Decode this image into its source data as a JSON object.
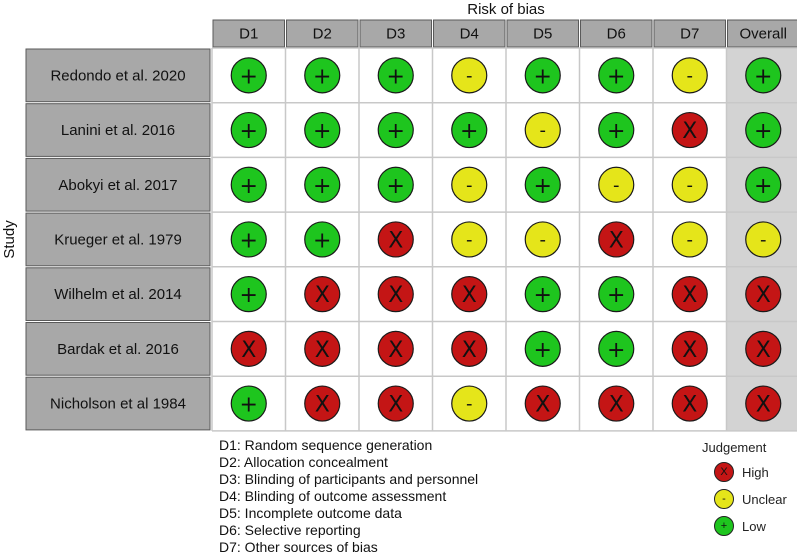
{
  "chart_data": {
    "type": "table",
    "title": "Risk of bias",
    "ylabel": "Study",
    "domains": [
      "D1",
      "D2",
      "D3",
      "D4",
      "D5",
      "D6",
      "D7",
      "Overall"
    ],
    "studies": [
      {
        "name": "Redondo et al. 2020",
        "judgements": [
          "low",
          "low",
          "low",
          "unclear",
          "low",
          "low",
          "unclear",
          "low"
        ]
      },
      {
        "name": "Lanini et al. 2016",
        "judgements": [
          "low",
          "low",
          "low",
          "low",
          "unclear",
          "low",
          "high",
          "low"
        ]
      },
      {
        "name": "Abokyi et al. 2017",
        "judgements": [
          "low",
          "low",
          "low",
          "unclear",
          "low",
          "unclear",
          "unclear",
          "low"
        ]
      },
      {
        "name": "Krueger et al. 1979",
        "judgements": [
          "low",
          "low",
          "high",
          "unclear",
          "unclear",
          "high",
          "unclear",
          "unclear"
        ]
      },
      {
        "name": "Wilhelm et al. 2014",
        "judgements": [
          "low",
          "high",
          "high",
          "high",
          "low",
          "low",
          "high",
          "high"
        ]
      },
      {
        "name": "Bardak et al. 2016",
        "judgements": [
          "high",
          "high",
          "high",
          "high",
          "low",
          "low",
          "high",
          "high"
        ]
      },
      {
        "name": "Nicholson et al 1984",
        "judgements": [
          "low",
          "high",
          "high",
          "unclear",
          "high",
          "high",
          "high",
          "high"
        ]
      }
    ],
    "symbols": {
      "low": "+",
      "unclear": "-",
      "high": "X"
    },
    "colors": {
      "low": "#1ec51e",
      "unclear": "#e5e51a",
      "high": "#c41515"
    },
    "legend": {
      "title": "Judgement",
      "placement": "bottom-right",
      "items": [
        {
          "key": "high",
          "label": "High"
        },
        {
          "key": "unclear",
          "label": "Unclear"
        },
        {
          "key": "low",
          "label": "Low"
        }
      ]
    },
    "domain_definitions": [
      "D1: Random sequence generation",
      "D2: Allocation concealment",
      "D3: Blinding of participants and personnel",
      "D4: Blinding of outcome assessment",
      "D5: Incomplete outcome data",
      "D6: Selective reporting",
      "D7: Other sources of bias"
    ]
  }
}
